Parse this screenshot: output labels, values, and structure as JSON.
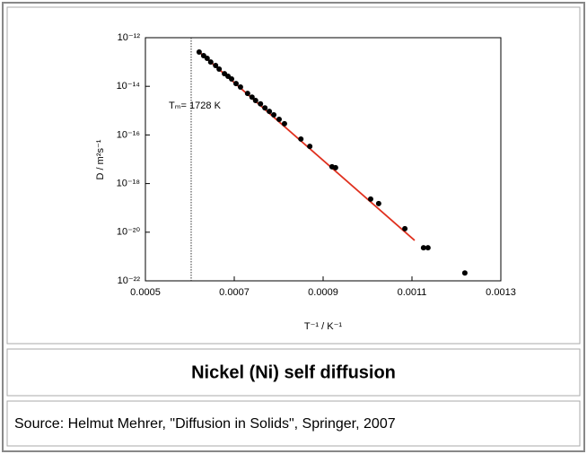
{
  "chart_data": {
    "type": "scatter",
    "x_label": "T⁻¹ / K⁻¹",
    "y_label": "D / m²s⁻¹",
    "annotation": "Tₘ= 1728 K",
    "annotation_x": 0.000603,
    "x": [
      0.000621,
      0.000631,
      0.000639,
      0.000647,
      0.000658,
      0.000666,
      0.000678,
      0.000686,
      0.000694,
      0.000704,
      0.000714,
      0.00073,
      0.00074,
      0.000748,
      0.000759,
      0.000769,
      0.000779,
      0.000789,
      0.000801,
      0.000813,
      0.00085,
      0.00087,
      0.00092,
      0.000928,
      0.001007,
      0.001025,
      0.001084,
      0.001126,
      0.001136,
      0.001219
    ],
    "values": [
      2.57e-13,
      1.82e-13,
      1.41e-13,
      1e-13,
      7.2e-14,
      5.1e-14,
      3.3e-14,
      2.6e-14,
      2e-14,
      1.3e-14,
      9.3e-15,
      5.1e-15,
      3.6e-15,
      2.6e-15,
      1.9e-15,
      1.3e-15,
      9.3e-16,
      6.7e-16,
      4.4e-16,
      2.9e-16,
      6.8e-17,
      3.4e-17,
      4.9e-18,
      4.5e-18,
      2.3e-19,
      1.5e-19,
      1.4e-20,
      2.3e-21,
      2.3e-21,
      2.1e-22
    ],
    "color": "#000000",
    "fit_line": {
      "x": [
        0.000617,
        0.001106
      ],
      "values": [
        3e-13,
        4.6e-21
      ],
      "color": "#e0301e"
    },
    "xlim": [
      0.0005,
      0.0013
    ],
    "xticks": [
      0.0005,
      0.0007,
      0.0009,
      0.0011,
      0.0013
    ],
    "ylim": [
      1e-22,
      1e-12
    ],
    "ylog": true,
    "yticks": [
      {
        "value": 1e-12,
        "label": "10⁻¹²"
      },
      {
        "value": 1e-14,
        "label": "10⁻¹⁴"
      },
      {
        "value": 1e-16,
        "label": "10⁻¹⁶"
      },
      {
        "value": 1e-18,
        "label": "10⁻¹⁸"
      },
      {
        "value": 1e-20,
        "label": "10⁻²⁰"
      },
      {
        "value": 1e-22,
        "label": "10⁻²²"
      }
    ]
  },
  "caption": "Nickel (Ni) self diffusion",
  "source": "Source: Helmut Mehrer, \"Diffusion in Solids\", Springer, 2007"
}
